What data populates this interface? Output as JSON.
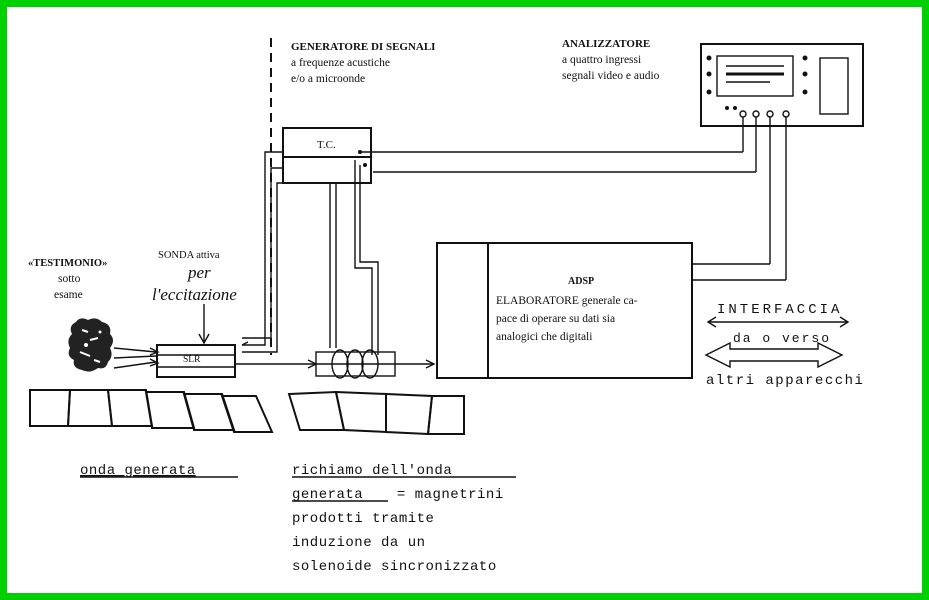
{
  "labels": {
    "generator_title": "GENERATORE DI SEGNALI",
    "generator_line1": "a frequenze acustiche",
    "generator_line2": "e/o a microonde",
    "analyzer_title": "ANALIZZATORE",
    "analyzer_line1": "a quattro ingressi",
    "analyzer_line2": "segnali video e audio",
    "tc": "T.C.",
    "witness_line1": "«TESTIMONIO»",
    "witness_line2": "sotto",
    "witness_line3": "esame",
    "probe_title": "SONDA attiva",
    "probe_hand1": "per",
    "probe_hand2": "l'eccitazione",
    "slr": "SLR",
    "adsp_title": "ADSP",
    "adsp_line1": "ELABORATORE generale ca-",
    "adsp_line2": "pace di operare su dati sia",
    "adsp_line3": "analogici che digitali",
    "interface_title": "INTERFACCIA",
    "interface_sub1": "da o verso",
    "interface_sub2": "altri apparecchi",
    "wave_caption": "onda generata",
    "recall_line1": "richiamo dell'onda",
    "recall_line2_u": "generata",
    "recall_line2_rest": " = magnetrini",
    "recall_line3": "prodotti tramite",
    "recall_line4": "induzione da un",
    "recall_line5": "solenoide sincronizzato"
  },
  "colors": {
    "frame": "#00d000",
    "ink": "#111111",
    "paper": "#ffffff"
  }
}
